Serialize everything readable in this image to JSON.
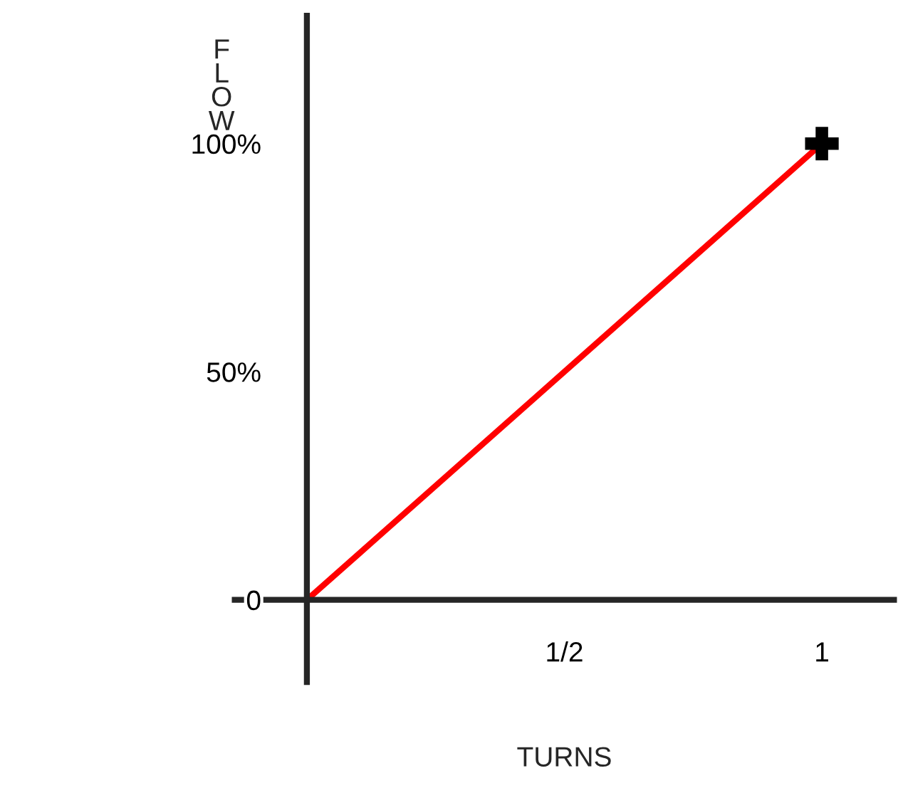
{
  "chart_data": {
    "type": "line",
    "xlabel": "TURNS",
    "ylabel": "F\nL\nO\nW",
    "x": [
      0,
      1
    ],
    "series": [
      {
        "color": "#ff0000",
        "values": [
          0,
          100
        ]
      },
      {
        "type": "scatter",
        "color": "#000000",
        "marker": "cross",
        "x": [
          1
        ],
        "values": [
          100
        ]
      }
    ],
    "xlim": [
      -0.14,
      1.14
    ],
    "ylim": [
      -18,
      128
    ],
    "xticks": [
      {
        "value": 0.5,
        "label": "1/2"
      },
      1
    ],
    "yticks": [
      {
        "value": 0,
        "label": "0"
      },
      {
        "value": 50,
        "label": "50%"
      },
      {
        "value": 100,
        "label": "100%"
      }
    ],
    "grid": false,
    "legend": false
  }
}
